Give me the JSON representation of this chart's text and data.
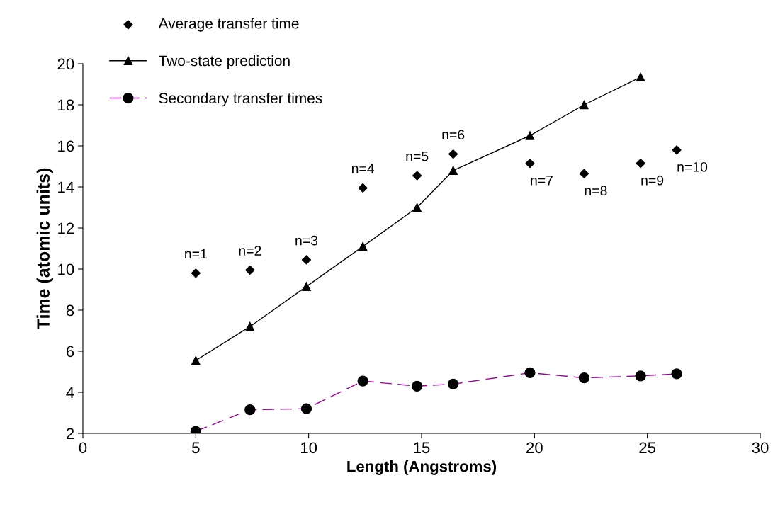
{
  "chart_data": {
    "type": "scatter",
    "xlabel": "Length (Angstroms)",
    "ylabel": "Time (atomic units)",
    "xlim": [
      0,
      30
    ],
    "ylim": [
      2,
      20
    ],
    "xticks": [
      0,
      5,
      10,
      15,
      20,
      25,
      30
    ],
    "yticks": [
      2,
      4,
      6,
      8,
      10,
      12,
      14,
      16,
      18,
      20
    ],
    "grid": false,
    "legend": "top left",
    "x": [
      5,
      7.4,
      9.9,
      12.4,
      14.8,
      16.4,
      19.8,
      22.2,
      24.7,
      26.3
    ],
    "series": [
      {
        "name": "Average transfer time",
        "marker": "diamond",
        "color": "#000000",
        "values": [
          9.8,
          9.95,
          10.45,
          13.95,
          14.55,
          15.6,
          15.15,
          14.65,
          15.15,
          15.8
        ]
      },
      {
        "name": "Two-state prediction",
        "type": "line",
        "marker": "triangle",
        "line_style": "solid",
        "color": "#000000",
        "values": [
          5.55,
          7.2,
          9.15,
          11.1,
          13.0,
          14.8,
          16.5,
          18.0,
          19.35,
          null
        ]
      },
      {
        "name": "Secondary transfer times",
        "type": "line",
        "marker": "circle",
        "line_style": "dashed",
        "color": "#990099",
        "values": [
          2.1,
          3.15,
          3.2,
          4.55,
          4.3,
          4.4,
          4.95,
          4.7,
          4.8,
          4.9
        ]
      }
    ],
    "annotations": [
      {
        "text": "n=1",
        "x": 5,
        "y": 9.8
      },
      {
        "text": "n=2",
        "x": 7.4,
        "y": 9.95
      },
      {
        "text": "n=3",
        "x": 9.9,
        "y": 10.45
      },
      {
        "text": "n=4",
        "x": 12.4,
        "y": 13.95
      },
      {
        "text": "n=5",
        "x": 14.8,
        "y": 14.55
      },
      {
        "text": "n=6",
        "x": 16.4,
        "y": 15.6
      },
      {
        "text": "n=7",
        "x": 19.8,
        "y": 15.15
      },
      {
        "text": "n=8",
        "x": 22.2,
        "y": 14.65
      },
      {
        "text": "n=9",
        "x": 24.7,
        "y": 15.15
      },
      {
        "text": "n=10",
        "x": 26.3,
        "y": 15.8
      }
    ]
  }
}
